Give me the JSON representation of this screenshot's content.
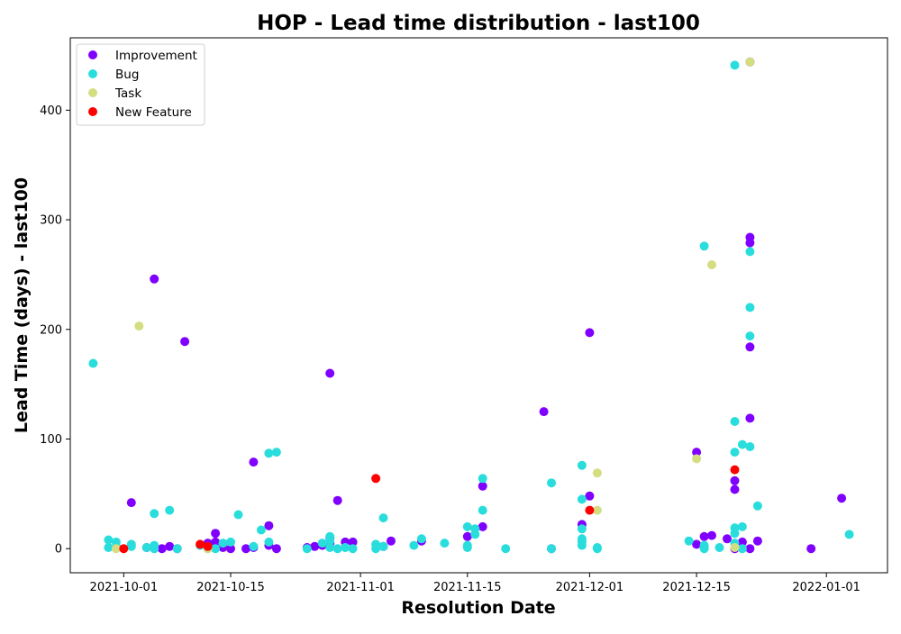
{
  "chart_data": {
    "type": "scatter",
    "title": "HOP - Lead time distribution - last100",
    "xlabel": "Resolution Date",
    "ylabel": "Lead Time (days) - last100",
    "x_type": "date",
    "xlim": [
      "2021-09-24",
      "2022-01-09"
    ],
    "ylim": [
      -22,
      466
    ],
    "x_ticks": [
      {
        "value": "2021-10-01",
        "label": "2021-10-01"
      },
      {
        "value": "2021-10-15",
        "label": "2021-10-15"
      },
      {
        "value": "2021-11-01",
        "label": "2021-11-01"
      },
      {
        "value": "2021-11-15",
        "label": "2021-11-15"
      },
      {
        "value": "2021-12-01",
        "label": "2021-12-01"
      },
      {
        "value": "2021-12-15",
        "label": "2021-12-15"
      },
      {
        "value": "2022-01-01",
        "label": "2022-01-01"
      }
    ],
    "y_ticks": [
      0,
      100,
      200,
      300,
      400
    ],
    "grid": false,
    "legend_position": "top-left",
    "series": [
      {
        "name": "Improvement",
        "color": "#8000ff",
        "points": [
          [
            "2021-09-30",
            1
          ],
          [
            "2021-10-02",
            42
          ],
          [
            "2021-10-04",
            1
          ],
          [
            "2021-10-05",
            246
          ],
          [
            "2021-10-06",
            0
          ],
          [
            "2021-10-07",
            2
          ],
          [
            "2021-10-08",
            0
          ],
          [
            "2021-10-09",
            189
          ],
          [
            "2021-10-12",
            5
          ],
          [
            "2021-10-13",
            14
          ],
          [
            "2021-10-13",
            6
          ],
          [
            "2021-10-14",
            1
          ],
          [
            "2021-10-15",
            0
          ],
          [
            "2021-10-17",
            0
          ],
          [
            "2021-10-18",
            79
          ],
          [
            "2021-10-18",
            1
          ],
          [
            "2021-10-20",
            21
          ],
          [
            "2021-10-20",
            3
          ],
          [
            "2021-10-21",
            0
          ],
          [
            "2021-10-25",
            1
          ],
          [
            "2021-10-26",
            2
          ],
          [
            "2021-10-27",
            3
          ],
          [
            "2021-10-28",
            160
          ],
          [
            "2021-10-28",
            10
          ],
          [
            "2021-10-28",
            5
          ],
          [
            "2021-10-29",
            44
          ],
          [
            "2021-10-30",
            6
          ],
          [
            "2021-10-31",
            6
          ],
          [
            "2021-11-04",
            2
          ],
          [
            "2021-11-05",
            7
          ],
          [
            "2021-11-09",
            7
          ],
          [
            "2021-11-15",
            11
          ],
          [
            "2021-11-17",
            57
          ],
          [
            "2021-11-17",
            20
          ],
          [
            "2021-11-25",
            125
          ],
          [
            "2021-11-26",
            0
          ],
          [
            "2021-11-30",
            22
          ],
          [
            "2021-12-01",
            48
          ],
          [
            "2021-12-01",
            197
          ],
          [
            "2021-12-15",
            88
          ],
          [
            "2021-12-15",
            4
          ],
          [
            "2021-12-16",
            11
          ],
          [
            "2021-12-17",
            12
          ],
          [
            "2021-12-19",
            9
          ],
          [
            "2021-12-20",
            62
          ],
          [
            "2021-12-20",
            54
          ],
          [
            "2021-12-20",
            0
          ],
          [
            "2021-12-21",
            6
          ],
          [
            "2021-12-22",
            284
          ],
          [
            "2021-12-22",
            279
          ],
          [
            "2021-12-22",
            184
          ],
          [
            "2021-12-22",
            119
          ],
          [
            "2021-12-22",
            0
          ],
          [
            "2021-12-22",
            444
          ],
          [
            "2021-12-23",
            7
          ],
          [
            "2021-12-30",
            0
          ],
          [
            "2022-01-03",
            46
          ]
        ]
      },
      {
        "name": "Bug",
        "color": "#2adddd",
        "points": [
          [
            "2021-09-27",
            169
          ],
          [
            "2021-09-29",
            8
          ],
          [
            "2021-09-29",
            1
          ],
          [
            "2021-09-30",
            6
          ],
          [
            "2021-09-30",
            2
          ],
          [
            "2021-10-02",
            4
          ],
          [
            "2021-10-02",
            2
          ],
          [
            "2021-10-04",
            1
          ],
          [
            "2021-10-05",
            32
          ],
          [
            "2021-10-05",
            3
          ],
          [
            "2021-10-05",
            0
          ],
          [
            "2021-10-07",
            35
          ],
          [
            "2021-10-08",
            0
          ],
          [
            "2021-10-11",
            3
          ],
          [
            "2021-10-12",
            0
          ],
          [
            "2021-10-13",
            0
          ],
          [
            "2021-10-14",
            5
          ],
          [
            "2021-10-15",
            6
          ],
          [
            "2021-10-16",
            31
          ],
          [
            "2021-10-18",
            2
          ],
          [
            "2021-10-19",
            17
          ],
          [
            "2021-10-20",
            87
          ],
          [
            "2021-10-20",
            6
          ],
          [
            "2021-10-21",
            88
          ],
          [
            "2021-10-25",
            0
          ],
          [
            "2021-10-27",
            5
          ],
          [
            "2021-10-28",
            11
          ],
          [
            "2021-10-28",
            7
          ],
          [
            "2021-10-28",
            1
          ],
          [
            "2021-10-29",
            0
          ],
          [
            "2021-10-30",
            1
          ],
          [
            "2021-10-31",
            0
          ],
          [
            "2021-11-03",
            0
          ],
          [
            "2021-11-03",
            4
          ],
          [
            "2021-11-04",
            28
          ],
          [
            "2021-11-04",
            2
          ],
          [
            "2021-11-08",
            3
          ],
          [
            "2021-11-09",
            9
          ],
          [
            "2021-11-12",
            5
          ],
          [
            "2021-11-15",
            20
          ],
          [
            "2021-11-15",
            3
          ],
          [
            "2021-11-15",
            1
          ],
          [
            "2021-11-16",
            18
          ],
          [
            "2021-11-16",
            13
          ],
          [
            "2021-11-17",
            64
          ],
          [
            "2021-11-17",
            35
          ],
          [
            "2021-11-20",
            0
          ],
          [
            "2021-11-26",
            60
          ],
          [
            "2021-11-26",
            0
          ],
          [
            "2021-11-30",
            76
          ],
          [
            "2021-11-30",
            45
          ],
          [
            "2021-11-30",
            18
          ],
          [
            "2021-11-30",
            9
          ],
          [
            "2021-11-30",
            6
          ],
          [
            "2021-11-30",
            3
          ],
          [
            "2021-12-02",
            1
          ],
          [
            "2021-12-02",
            0
          ],
          [
            "2021-12-14",
            7
          ],
          [
            "2021-12-16",
            276
          ],
          [
            "2021-12-16",
            3
          ],
          [
            "2021-12-16",
            1
          ],
          [
            "2021-12-16",
            0
          ],
          [
            "2021-12-18",
            1
          ],
          [
            "2021-12-20",
            441
          ],
          [
            "2021-12-20",
            116
          ],
          [
            "2021-12-20",
            88
          ],
          [
            "2021-12-20",
            19
          ],
          [
            "2021-12-20",
            14
          ],
          [
            "2021-12-20",
            5
          ],
          [
            "2021-12-21",
            95
          ],
          [
            "2021-12-21",
            20
          ],
          [
            "2021-12-21",
            0
          ],
          [
            "2021-12-22",
            271
          ],
          [
            "2021-12-22",
            220
          ],
          [
            "2021-12-22",
            194
          ],
          [
            "2021-12-22",
            93
          ],
          [
            "2021-12-23",
            39
          ],
          [
            "2022-01-04",
            13
          ]
        ]
      },
      {
        "name": "Task",
        "color": "#d4dd80",
        "points": [
          [
            "2021-09-30",
            0
          ],
          [
            "2021-10-03",
            203
          ],
          [
            "2021-10-12",
            0
          ],
          [
            "2021-12-02",
            69
          ],
          [
            "2021-12-02",
            35
          ],
          [
            "2021-12-15",
            82
          ],
          [
            "2021-12-17",
            259
          ],
          [
            "2021-12-20",
            1
          ],
          [
            "2021-12-22",
            444
          ]
        ]
      },
      {
        "name": "New Feature",
        "color": "#ff0000",
        "points": [
          [
            "2021-10-01",
            0
          ],
          [
            "2021-10-11",
            4
          ],
          [
            "2021-10-12",
            2
          ],
          [
            "2021-11-03",
            64
          ],
          [
            "2021-12-01",
            35
          ],
          [
            "2021-12-20",
            72
          ]
        ]
      }
    ]
  }
}
